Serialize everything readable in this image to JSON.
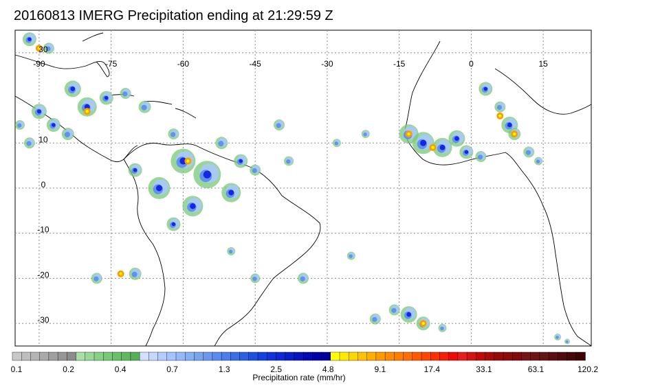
{
  "title": "20160813 IMERG Precipitation ending at 21:29:59 Z",
  "map": {
    "lon_ticks": [
      "-90",
      "-75",
      "-60",
      "-45",
      "-30",
      "-15",
      "0",
      "15"
    ],
    "lat_ticks": [
      "30",
      "10",
      "0",
      "-10",
      "-20",
      "-30"
    ],
    "lon_range": [
      -95,
      25
    ],
    "lat_range": [
      -35,
      35
    ]
  },
  "legend": {
    "labels": [
      "0.1",
      "0.2",
      "0.4",
      "0.7",
      "1.3",
      "2.5",
      "4.8",
      "9.1",
      "17.4",
      "33.1",
      "63.1",
      "120.2"
    ],
    "title": "Precipitation rate (mm/hr)",
    "colors": {
      "gray": "#a0a0a0",
      "green": "#78c878",
      "light_blue": "#aac8ff",
      "blue": "#5a8cf0",
      "dark_blue": "#1428dc",
      "yellow": "#ffff00",
      "orange": "#ff9a00",
      "red": "#e61e1e",
      "dark_red": "#6e1414"
    }
  }
}
